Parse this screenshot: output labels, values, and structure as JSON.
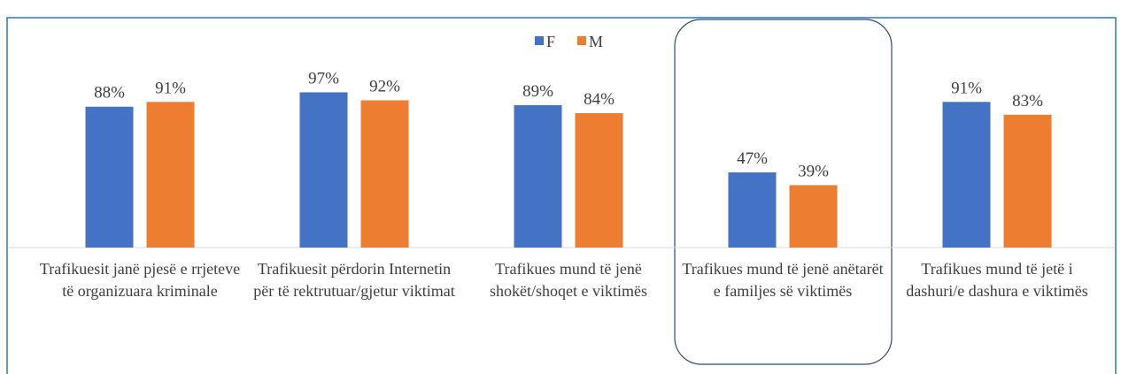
{
  "chart_data": {
    "type": "bar",
    "categories": [
      "Trafikuesit janë pjesë e rrjeteve të organizuara kriminale",
      "Trafikuesit përdorin Internetin për të rektrutuar/gjetur viktimat",
      "Trafikues mund të jenë shokët/shoqet e viktimës",
      "Trafikues mund të jenë anëtarët e familjes së viktimës",
      "Trafikues mund të jetë i dashuri/e dashura e viktimës"
    ],
    "series": [
      {
        "name": "F",
        "color": "#4472c4",
        "values": [
          88,
          97,
          89,
          47,
          91
        ],
        "value_labels": [
          "88%",
          "97%",
          "89%",
          "47%",
          "91%"
        ]
      },
      {
        "name": "M",
        "color": "#ed7d31",
        "values": [
          91,
          92,
          84,
          39,
          83
        ],
        "value_labels": [
          "91%",
          "92%",
          "84%",
          "39%",
          "83%"
        ]
      }
    ],
    "ylim": [
      0,
      100
    ]
  }
}
